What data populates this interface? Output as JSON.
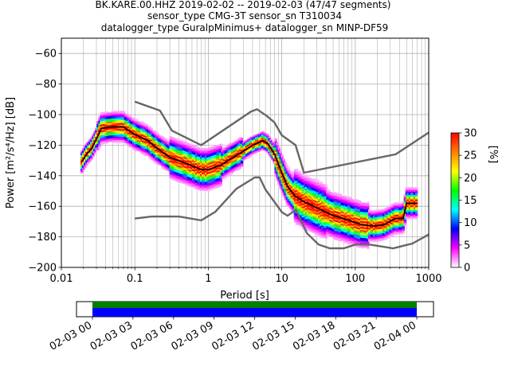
{
  "chart_data": [
    {
      "type": "heatmap",
      "title_lines": [
        "BK.KARE.00.HHZ   2019-02-02 -- 2019-02-03  (47/47 segments)",
        "sensor_type CMG-3T sensor_sn T310034",
        "datalogger_type GuralpMinimus+ datalogger_sn MINP-DF59"
      ],
      "xlabel": "Period [s]",
      "ylabel": "Power [m²/s⁴/Hz] [dB]",
      "x_scale": "log",
      "xlim": [
        0.01,
        1000
      ],
      "ylim": [
        -200,
        -50
      ],
      "x_ticks": [
        0.01,
        0.1,
        1,
        10,
        100,
        1000
      ],
      "x_tick_labels": [
        "0.01",
        "0.1",
        "1",
        "10",
        "100",
        "1000"
      ],
      "y_ticks": [
        -200,
        -180,
        -160,
        -140,
        -120,
        -100,
        -80,
        -60
      ],
      "y_tick_labels": [
        "−200",
        "−180",
        "−160",
        "−140",
        "−120",
        "−100",
        "−80",
        "−60"
      ],
      "grid": true,
      "series": [
        {
          "name": "",
          "color": "#000000",
          "x": [
            0.019,
            0.022,
            0.026,
            0.03,
            0.035,
            0.05,
            0.07,
            0.1,
            0.15,
            0.2,
            0.3,
            0.5,
            0.8,
            1.0,
            1.5,
            2.0,
            3.0,
            4.0,
            5.0,
            5.5,
            6.5,
            8.0,
            10.0,
            12.0,
            15.0,
            20.0,
            30.0,
            50.0,
            80.0,
            120.0,
            180.0,
            250.0,
            350.0,
            450.0,
            500.0,
            700.0
          ],
          "y": [
            -131,
            -126,
            -122,
            -116,
            -109,
            -108,
            -108,
            -113,
            -117,
            -122,
            -128,
            -132,
            -136,
            -136,
            -133,
            -129,
            -124,
            -120,
            -118,
            -117,
            -119,
            -126,
            -138,
            -147,
            -153,
            -157,
            -161,
            -166,
            -169,
            -172,
            -173,
            -172,
            -168,
            -168,
            -158,
            -158
          ]
        },
        {
          "name": "",
          "color": "#666666",
          "x": [
            0.1,
            0.22,
            0.32,
            0.8,
            3.8,
            4.6,
            6.3,
            7.9,
            10,
            15.4,
            20,
            354.8,
            10000
          ],
          "y": [
            -91.5,
            -97.4,
            -110.5,
            -120,
            -98,
            -96.5,
            -101,
            -105,
            -113.5,
            -120,
            -138,
            -126,
            -80.1
          ]
        },
        {
          "name": "",
          "color": "#666666",
          "x": [
            0.1,
            0.17,
            0.4,
            0.8,
            1.24,
            2.4,
            4.3,
            5.0,
            6.0,
            10.0,
            12.0,
            15.6,
            21.9,
            31.6,
            45.0,
            70.0,
            101.0,
            154.0,
            328.0,
            600.0,
            10000
          ],
          "y": [
            -168,
            -166.7,
            -166.7,
            -169.2,
            -163.7,
            -148.6,
            -141.1,
            -141.1,
            -149,
            -163.8,
            -166.2,
            -162.2,
            -177.5,
            -185,
            -187.5,
            -187.5,
            -185,
            -185,
            -187.5,
            -184.4,
            -151.9
          ]
        }
      ],
      "colorbar": {
        "label": "[%]",
        "range": [
          0,
          30
        ],
        "ticks": [
          0,
          5,
          10,
          15,
          20,
          25,
          30
        ],
        "colors": [
          "#ffffff",
          "#ff00ff",
          "#0000ff",
          "#00ffff",
          "#00ff00",
          "#ffff00",
          "#ff8000",
          "#ff0000"
        ]
      }
    },
    {
      "type": "bar",
      "x_tick_labels": [
        "02-03 00",
        "02-03 03",
        "02-03 06",
        "02-03 09",
        "02-03 12",
        "02-03 15",
        "02-03 18",
        "02-03 21",
        "02-04 00"
      ],
      "coverage_rows": [
        {
          "color": "#008000"
        },
        {
          "color": "#0000ff"
        }
      ]
    }
  ]
}
